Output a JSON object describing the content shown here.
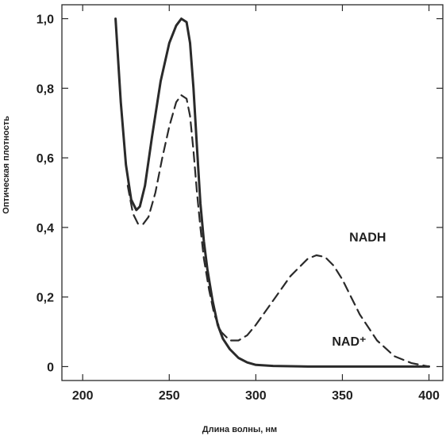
{
  "chart_data": {
    "type": "line",
    "xlabel": "Длина волны, нм",
    "ylabel": "Оптическая плотность",
    "xlim": [
      188,
      408
    ],
    "ylim": [
      -0.04,
      1.04
    ],
    "x_ticks": [
      200,
      250,
      300,
      350,
      400
    ],
    "x_tick_labels": [
      "200",
      "250",
      "300",
      "350",
      "400"
    ],
    "y_ticks": [
      0,
      0.2,
      0.4,
      0.6,
      0.8,
      1.0
    ],
    "y_tick_labels": [
      "0",
      "0,2",
      "0,4",
      "0,6",
      "0,8",
      "1,0"
    ],
    "grid": false,
    "series": [
      {
        "name": "NAD+",
        "style": "solid",
        "x": [
          219,
          222,
          225,
          228,
          231,
          233,
          236,
          240,
          245,
          250,
          254,
          257,
          260,
          262,
          264,
          266,
          268,
          270,
          272,
          275,
          278,
          281,
          285,
          290,
          295,
          300,
          310,
          330,
          360,
          400
        ],
        "y": [
          1.0,
          0.76,
          0.58,
          0.48,
          0.45,
          0.46,
          0.52,
          0.66,
          0.82,
          0.93,
          0.98,
          1.0,
          0.99,
          0.93,
          0.8,
          0.63,
          0.47,
          0.36,
          0.28,
          0.19,
          0.12,
          0.08,
          0.05,
          0.025,
          0.012,
          0.005,
          0.002,
          0.0,
          0.0,
          0.0
        ]
      },
      {
        "name": "NADH",
        "style": "dashed",
        "x": [
          226,
          229,
          232,
          235,
          238,
          242,
          246,
          250,
          254,
          257,
          260,
          262,
          264,
          266,
          268,
          270,
          273,
          276,
          280,
          285,
          290,
          295,
          300,
          310,
          320,
          330,
          335,
          340,
          345,
          350,
          355,
          360,
          370,
          380,
          390,
          400
        ],
        "y": [
          0.52,
          0.44,
          0.41,
          0.41,
          0.43,
          0.5,
          0.6,
          0.69,
          0.76,
          0.78,
          0.77,
          0.72,
          0.62,
          0.5,
          0.4,
          0.31,
          0.22,
          0.15,
          0.1,
          0.075,
          0.075,
          0.09,
          0.12,
          0.19,
          0.26,
          0.31,
          0.32,
          0.315,
          0.29,
          0.25,
          0.2,
          0.15,
          0.075,
          0.03,
          0.01,
          0.0
        ]
      }
    ],
    "annotations": [
      {
        "text": "NADH",
        "x": 354,
        "y": 0.36
      },
      {
        "text": "NAD⁺",
        "x": 344,
        "y": 0.06
      }
    ]
  }
}
